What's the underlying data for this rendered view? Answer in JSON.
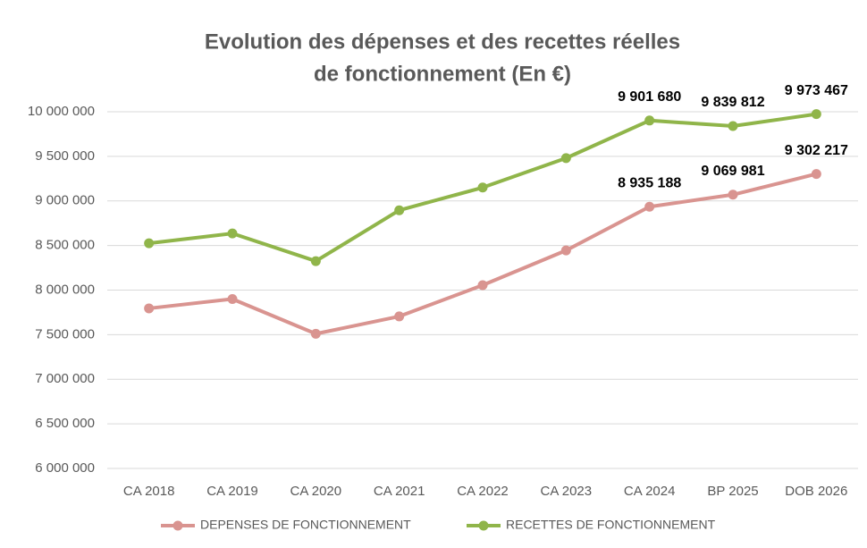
{
  "chart_data": {
    "type": "line",
    "title": [
      "Evolution des dépenses et des recettes réelles",
      "de fonctionnement (En €)"
    ],
    "categories": [
      "CA 2018",
      "CA 2019",
      "CA 2020",
      "CA 2021",
      "CA 2022",
      "CA 2023",
      "CA 2024",
      "BP 2025",
      "DOB 2026"
    ],
    "series": [
      {
        "name": "DEPENSES DE FONCTIONNEMENT",
        "color": "#d99490",
        "values": [
          7795000,
          7900000,
          7510000,
          7705000,
          8055000,
          8445000,
          8935188,
          9069981,
          9302217
        ],
        "value_labels": [
          null,
          null,
          null,
          null,
          null,
          null,
          "8 935 188",
          "9 069 981",
          "9 302 217"
        ]
      },
      {
        "name": "RECETTES DE FONCTIONNEMENT",
        "color": "#90b54a",
        "values": [
          8525000,
          8635000,
          8325000,
          8895000,
          9150000,
          9480000,
          9901680,
          9839812,
          9973467
        ],
        "value_labels": [
          null,
          null,
          null,
          null,
          null,
          null,
          "9 901 680",
          "9 839 812",
          "9 973 467"
        ]
      }
    ],
    "ylim": [
      6000000,
      10000000
    ],
    "yticks": [
      {
        "value": 6000000,
        "label": "6 000 000"
      },
      {
        "value": 6500000,
        "label": "6 500 000"
      },
      {
        "value": 7000000,
        "label": "7 000 000"
      },
      {
        "value": 7500000,
        "label": "7 500 000"
      },
      {
        "value": 8000000,
        "label": "8 000 000"
      },
      {
        "value": 8500000,
        "label": "8 500 000"
      },
      {
        "value": 9000000,
        "label": "9 000 000"
      },
      {
        "value": 9500000,
        "label": "9 500 000"
      },
      {
        "value": 10000000,
        "label": "10 000 000"
      }
    ],
    "grid": true,
    "legend": "bottom"
  }
}
